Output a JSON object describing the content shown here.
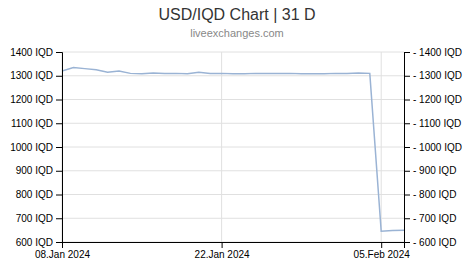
{
  "chart_data": {
    "type": "line",
    "title": "USD/IQD Chart | 31 D",
    "subtitle": "liveexchanges.com",
    "x": [
      0,
      1,
      2,
      3,
      4,
      5,
      6,
      7,
      8,
      9,
      10,
      11,
      12,
      13,
      14,
      15,
      16,
      17,
      18,
      19,
      20,
      21,
      22,
      23,
      24,
      25,
      26,
      27,
      28,
      29,
      30
    ],
    "values": [
      1320,
      1335,
      1330,
      1325,
      1315,
      1320,
      1310,
      1308,
      1312,
      1310,
      1310,
      1308,
      1315,
      1310,
      1310,
      1308,
      1308,
      1310,
      1310,
      1310,
      1310,
      1308,
      1308,
      1308,
      1310,
      1310,
      1312,
      1310,
      645,
      648,
      650
    ],
    "color": "#9ab3d4",
    "xlim": [
      0,
      30
    ],
    "xticks": [
      {
        "value": 0,
        "label": "08.Jan 2024"
      },
      {
        "value": 14,
        "label": "22.Jan 2024"
      },
      {
        "value": 28,
        "label": "05.Feb 2024"
      }
    ],
    "ylim": [
      600,
      1400
    ],
    "yticks": [
      {
        "value": 600,
        "label": "600 IQD"
      },
      {
        "value": 700,
        "label": "700 IQD"
      },
      {
        "value": 800,
        "label": "800 IQD"
      },
      {
        "value": 900,
        "label": "900 IQD"
      },
      {
        "value": 1000,
        "label": "1000 IQD"
      },
      {
        "value": 1100,
        "label": "1100 IQD"
      },
      {
        "value": 1200,
        "label": "1200 IQD"
      },
      {
        "value": 1300,
        "label": "1300 IQD"
      },
      {
        "value": 1400,
        "label": "1400 IQD"
      }
    ],
    "y2lim": [
      600,
      1400
    ],
    "y2ticks": [
      {
        "value": 600,
        "label": "- 600 IQD"
      },
      {
        "value": 700,
        "label": "- 700 IQD"
      },
      {
        "value": 800,
        "label": "- 800 IQD"
      },
      {
        "value": 900,
        "label": "- 900 IQD"
      },
      {
        "value": 1000,
        "label": "- 1000 IQD"
      },
      {
        "value": 1100,
        "label": "- 1100 IQD"
      },
      {
        "value": 1200,
        "label": "- 1200 IQD"
      },
      {
        "value": 1300,
        "label": "- 1300 IQD"
      },
      {
        "value": 1400,
        "label": "- 1400 IQD"
      }
    ],
    "grid": true
  }
}
